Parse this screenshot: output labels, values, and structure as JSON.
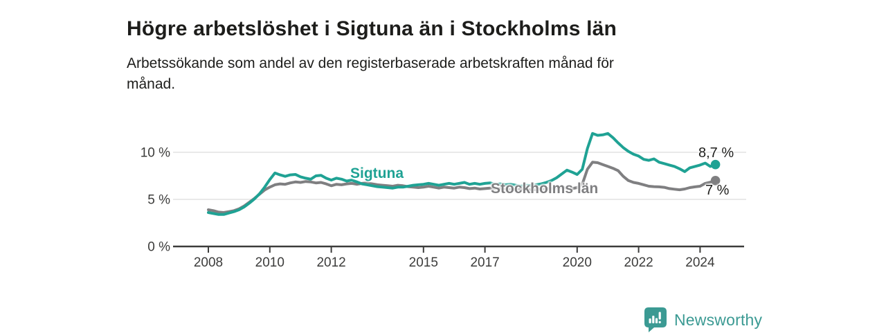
{
  "header": {
    "title": "Högre arbetslöshet i Sigtuna än i Stockholms län",
    "subtitle_lines": [
      "Arbetssökande som andel av den registerbaserade arbetskraften månad för",
      "månad."
    ]
  },
  "branding": {
    "logo_text": "Newsworthy",
    "logo_icon": "bar-chart-speech-bubble-icon",
    "logo_color": "#3b9a93"
  },
  "colors": {
    "sigtuna_teal": "#1fa294",
    "stockholm_gray": "#7f7f81",
    "axis": "#3c3c3b",
    "grid": "#dcdcdc",
    "text": "#1d1d1b"
  },
  "chart_data": {
    "type": "line",
    "title": "Högre arbetslöshet i Sigtuna än i Stockholms län",
    "subtitle": "Arbetssökande som andel av den registerbaserade arbetskraften månad för månad.",
    "unit": "%",
    "grid": "horizontal",
    "legend_position": "inline-labels",
    "x_start_year": 2008,
    "x_step_months": 2,
    "x_end_year": 2024.5,
    "xlim": [
      2006.85,
      2025.4
    ],
    "ylim": [
      0,
      13
    ],
    "x_ticks": [
      {
        "year": 2008,
        "label": "2008"
      },
      {
        "year": 2010,
        "label": "2010"
      },
      {
        "year": 2012,
        "label": "2012"
      },
      {
        "year": 2015,
        "label": "2015"
      },
      {
        "year": 2017,
        "label": "2017"
      },
      {
        "year": 2020,
        "label": "2020"
      },
      {
        "year": 2022,
        "label": "2022"
      },
      {
        "year": 2024,
        "label": "2024"
      }
    ],
    "y_ticks": [
      {
        "value": 0,
        "label": "0 %"
      },
      {
        "value": 5,
        "label": "5 %"
      },
      {
        "value": 10,
        "label": "10 %"
      }
    ],
    "series": [
      {
        "id": "stockholms-lan",
        "name": "Stockholms län",
        "color": "#7f7f81",
        "end_label": "7 %",
        "end_value": 7.0,
        "values": [
          3.9,
          3.8,
          3.65,
          3.6,
          3.7,
          3.8,
          4.0,
          4.3,
          4.7,
          5.1,
          5.55,
          6.0,
          6.3,
          6.55,
          6.65,
          6.6,
          6.75,
          6.85,
          6.8,
          6.9,
          6.85,
          6.75,
          6.8,
          6.65,
          6.45,
          6.6,
          6.55,
          6.65,
          6.7,
          6.6,
          6.7,
          6.75,
          6.65,
          6.55,
          6.5,
          6.45,
          6.4,
          6.5,
          6.45,
          6.35,
          6.3,
          6.25,
          6.3,
          6.4,
          6.3,
          6.2,
          6.3,
          6.25,
          6.2,
          6.3,
          6.25,
          6.15,
          6.2,
          6.1,
          6.15,
          6.2,
          6.1,
          6.15,
          6.1,
          6.05,
          6.0,
          6.1,
          6.05,
          6.0,
          6.05,
          6.1,
          6.1,
          6.15,
          6.2,
          6.25,
          6.2,
          6.15,
          6.25,
          6.6,
          8.2,
          8.95,
          8.9,
          8.7,
          8.5,
          8.3,
          8.05,
          7.45,
          7.0,
          6.8,
          6.7,
          6.55,
          6.4,
          6.35,
          6.33,
          6.28,
          6.15,
          6.08,
          6.02,
          6.1,
          6.25,
          6.33,
          6.4,
          6.7,
          6.82,
          7.0
        ]
      },
      {
        "id": "sigtuna",
        "name": "Sigtuna",
        "color": "#1fa294",
        "end_label": "8,7 %",
        "end_value": 8.7,
        "values": [
          3.6,
          3.5,
          3.4,
          3.4,
          3.55,
          3.7,
          3.9,
          4.2,
          4.6,
          5.05,
          5.6,
          6.3,
          7.1,
          7.8,
          7.6,
          7.45,
          7.6,
          7.65,
          7.4,
          7.25,
          7.15,
          7.5,
          7.55,
          7.25,
          7.05,
          7.25,
          7.15,
          6.95,
          7.05,
          6.85,
          6.65,
          6.55,
          6.45,
          6.35,
          6.3,
          6.25,
          6.2,
          6.3,
          6.3,
          6.4,
          6.5,
          6.55,
          6.6,
          6.7,
          6.6,
          6.5,
          6.6,
          6.7,
          6.6,
          6.7,
          6.8,
          6.6,
          6.7,
          6.6,
          6.7,
          6.75,
          6.6,
          6.65,
          6.55,
          6.6,
          6.5,
          6.4,
          6.5,
          6.45,
          6.55,
          6.65,
          6.8,
          7.0,
          7.3,
          7.7,
          8.1,
          7.9,
          7.65,
          8.2,
          10.4,
          12.0,
          11.8,
          11.85,
          12.0,
          11.55,
          11.0,
          10.5,
          10.1,
          9.8,
          9.6,
          9.25,
          9.15,
          9.3,
          8.95,
          8.8,
          8.65,
          8.5,
          8.25,
          7.95,
          8.35,
          8.5,
          8.65,
          8.85,
          8.5,
          8.7
        ]
      }
    ]
  }
}
